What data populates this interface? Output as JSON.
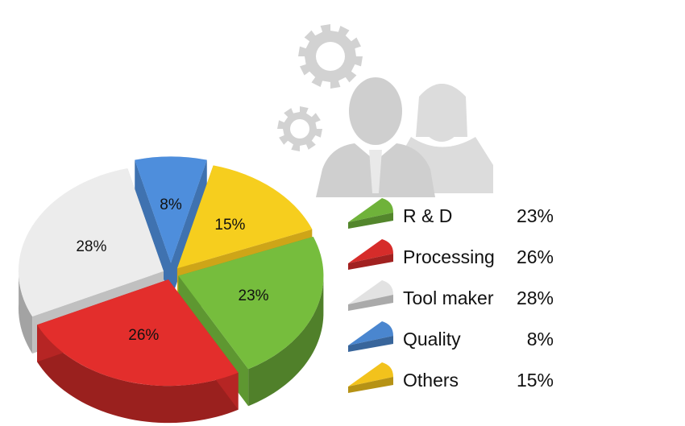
{
  "chart_data": {
    "type": "pie",
    "categories": [
      "R & D",
      "Processing",
      "Tool maker",
      "Quality",
      "Others"
    ],
    "values": [
      23,
      26,
      28,
      8,
      15
    ],
    "labels": [
      "23%",
      "26%",
      "28%",
      "8%",
      "15%"
    ],
    "colors": [
      "#6fb23a",
      "#d62c2a",
      "#e2e2e2",
      "#4a86cf",
      "#f2c21c"
    ],
    "legend_position": "right",
    "legend": [
      {
        "name": "R & D",
        "value": "23%"
      },
      {
        "name": "Processing",
        "value": "26%"
      },
      {
        "name": "Tool maker",
        "value": "28%"
      },
      {
        "name": "Quality",
        "value": "8%"
      },
      {
        "name": "Others",
        "value": "15%"
      }
    ]
  },
  "decoration": {
    "icons": [
      "gear-icon",
      "gear-icon",
      "businessman-icon",
      "businesswoman-icon"
    ],
    "icon_color": "#d6d6d6"
  }
}
